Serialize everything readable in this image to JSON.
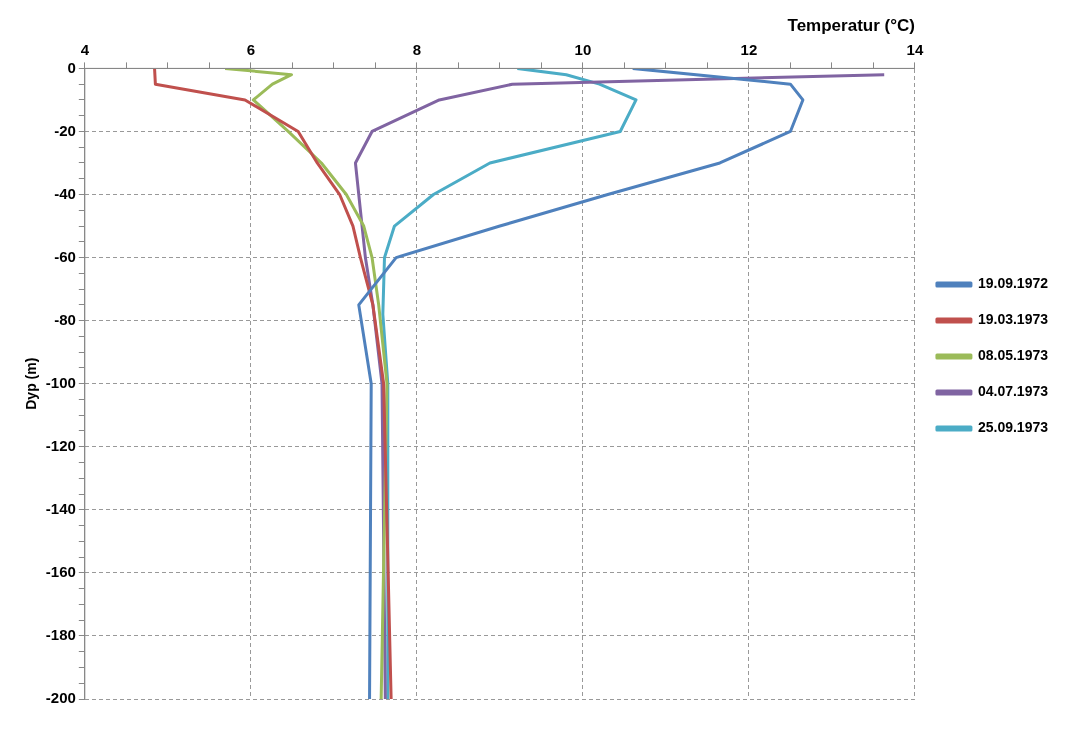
{
  "chart_data": {
    "type": "line",
    "xlabel": "Temperatur (°C)",
    "ylabel": "Dyp (m)",
    "xlim": [
      4,
      14
    ],
    "xticks": [
      4,
      {
        "value": 4.5,
        "label": null
      },
      {
        "value": 5,
        "label": null
      },
      {
        "value": 5.5,
        "label": null
      },
      6,
      {
        "value": 6.5,
        "label": null
      },
      {
        "value": 7,
        "label": null
      },
      {
        "value": 7.5,
        "label": null
      },
      8,
      {
        "value": 8.5,
        "label": null
      },
      {
        "value": 9,
        "label": null
      },
      {
        "value": 9.5,
        "label": null
      },
      10,
      {
        "value": 10.5,
        "label": null
      },
      {
        "value": 11,
        "label": null
      },
      {
        "value": 11.5,
        "label": null
      },
      12,
      {
        "value": 12.5,
        "label": null
      },
      {
        "value": 13,
        "label": null
      },
      {
        "value": 13.5,
        "label": null
      },
      14
    ],
    "ylim": [
      -200,
      0
    ],
    "yticks": [
      -200,
      {
        "value": -195,
        "label": null
      },
      {
        "value": -190,
        "label": null
      },
      {
        "value": -185,
        "label": null
      },
      -180,
      {
        "value": -175,
        "label": null
      },
      {
        "value": -170,
        "label": null
      },
      {
        "value": -165,
        "label": null
      },
      -160,
      {
        "value": -155,
        "label": null
      },
      {
        "value": -150,
        "label": null
      },
      {
        "value": -145,
        "label": null
      },
      -140,
      {
        "value": -135,
        "label": null
      },
      {
        "value": -130,
        "label": null
      },
      {
        "value": -125,
        "label": null
      },
      -120,
      {
        "value": -115,
        "label": null
      },
      {
        "value": -110,
        "label": null
      },
      {
        "value": -105,
        "label": null
      },
      -100,
      {
        "value": -95,
        "label": null
      },
      {
        "value": -90,
        "label": null
      },
      {
        "value": -85,
        "label": null
      },
      -80,
      {
        "value": -75,
        "label": null
      },
      {
        "value": -70,
        "label": null
      },
      {
        "value": -65,
        "label": null
      },
      -60,
      {
        "value": -55,
        "label": null
      },
      {
        "value": -50,
        "label": null
      },
      {
        "value": -45,
        "label": null
      },
      -40,
      {
        "value": -35,
        "label": null
      },
      {
        "value": -30,
        "label": null
      },
      {
        "value": -25,
        "label": null
      },
      -20,
      {
        "value": -15,
        "label": null
      },
      {
        "value": -10,
        "label": null
      },
      {
        "value": -5,
        "label": null
      },
      0
    ],
    "grid": true,
    "legend": "right",
    "marker": "none",
    "line_style": "solid",
    "series": [
      {
        "name": "19.09.1972",
        "color": "#4f81bd",
        "x": [
          10.6,
          12.5,
          12.65,
          12.5,
          11.65,
          10.3,
          9.0,
          7.75,
          7.3,
          7.45,
          7.43
        ],
        "values": [
          0,
          -5,
          -10,
          -20,
          -30,
          -40,
          -50,
          -60,
          -75,
          -100,
          -200
        ]
      },
      {
        "name": "19.03.1973",
        "color": "#c0504d",
        "x": [
          4.84,
          4.85,
          5.93,
          6.57,
          6.8,
          7.07,
          7.23,
          7.32,
          7.47,
          7.6,
          7.69
        ],
        "values": [
          0,
          -5,
          -10,
          -20,
          -30,
          -40,
          -50,
          -60,
          -75,
          -100,
          -200
        ]
      },
      {
        "name": "08.05.1973",
        "color": "#9bbb59",
        "x": [
          5.69,
          6.49,
          6.26,
          6.03,
          6.45,
          6.85,
          7.15,
          7.36,
          7.46,
          7.54,
          7.64,
          7.57
        ],
        "values": [
          0,
          -2,
          -5,
          -10,
          -20,
          -30,
          -40,
          -50,
          -60,
          -75,
          -100,
          -200
        ]
      },
      {
        "name": "04.07.1973",
        "color": "#8064a2",
        "x": [
          13.63,
          9.15,
          8.27,
          7.46,
          7.26,
          7.38,
          7.47,
          7.58,
          7.62
        ],
        "values": [
          -2,
          -5,
          -10,
          -20,
          -30,
          -60,
          -75,
          -100,
          -200
        ]
      },
      {
        "name": "25.09.1973",
        "color": "#4bacc6",
        "x": [
          9.21,
          9.8,
          10.2,
          10.64,
          10.45,
          8.88,
          8.2,
          7.73,
          7.61,
          7.59,
          7.65,
          7.65
        ],
        "values": [
          0,
          -2,
          -5,
          -10,
          -20,
          -30,
          -40,
          -50,
          -60,
          -78,
          -100,
          -200
        ]
      }
    ]
  }
}
